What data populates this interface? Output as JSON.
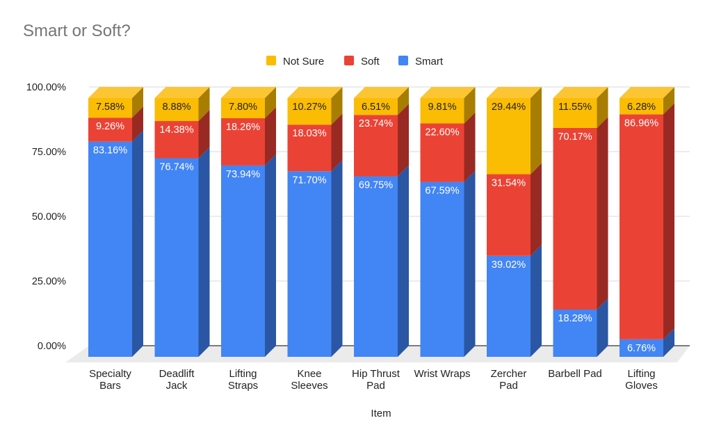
{
  "chart_data": {
    "type": "bar",
    "stacked": true,
    "three_d": true,
    "title": "Smart or Soft?",
    "xlabel": "Item",
    "ylabel": "",
    "ylim": [
      0,
      100
    ],
    "yticks": [
      "0.00%",
      "25.00%",
      "50.00%",
      "75.00%",
      "100.00%"
    ],
    "ytick_values": [
      0,
      25,
      50,
      75,
      100
    ],
    "grid": true,
    "legend_position": "top",
    "legend": [
      "Not Sure",
      "Soft",
      "Smart"
    ],
    "categories": [
      [
        "Specialty",
        "Bars"
      ],
      [
        "Deadlift",
        "Jack"
      ],
      [
        "Lifting",
        "Straps"
      ],
      [
        "Knee",
        "Sleeves"
      ],
      [
        "Hip Thrust",
        "Pad"
      ],
      [
        "Wrist Wraps"
      ],
      [
        "Zercher",
        "Pad"
      ],
      [
        "Barbell Pad"
      ],
      [
        "Lifting",
        "Gloves"
      ]
    ],
    "series": [
      {
        "name": "Smart",
        "color": "#4285f4",
        "side_color": "#2a56a3",
        "label_color": "#ffffff",
        "values": [
          83.16,
          76.74,
          73.94,
          71.7,
          69.75,
          67.59,
          39.02,
          18.28,
          6.76
        ],
        "labels": [
          "83.16%",
          "76.74%",
          "73.94%",
          "71.70%",
          "69.75%",
          "67.59%",
          "39.02%",
          "18.28%",
          "6.76%"
        ]
      },
      {
        "name": "Soft",
        "color": "#ea4335",
        "side_color": "#992a23",
        "label_color": "#ffffff",
        "values": [
          9.26,
          14.38,
          18.26,
          18.03,
          23.74,
          22.6,
          31.54,
          70.17,
          86.96
        ],
        "labels": [
          "9.26%",
          "14.38%",
          "18.26%",
          "18.03%",
          "23.74%",
          "22.60%",
          "31.54%",
          "70.17%",
          "86.96%"
        ]
      },
      {
        "name": "Not Sure",
        "color": "#fbbc04",
        "side_color": "#a77d02",
        "top_color": "#fbc534",
        "label_color": "#222222",
        "values": [
          7.58,
          8.88,
          7.8,
          10.27,
          6.51,
          9.81,
          29.44,
          11.55,
          6.28
        ],
        "labels": [
          "7.58%",
          "8.88%",
          "7.80%",
          "10.27%",
          "6.51%",
          "9.81%",
          "29.44%",
          "11.55%",
          "6.28%"
        ]
      }
    ]
  }
}
